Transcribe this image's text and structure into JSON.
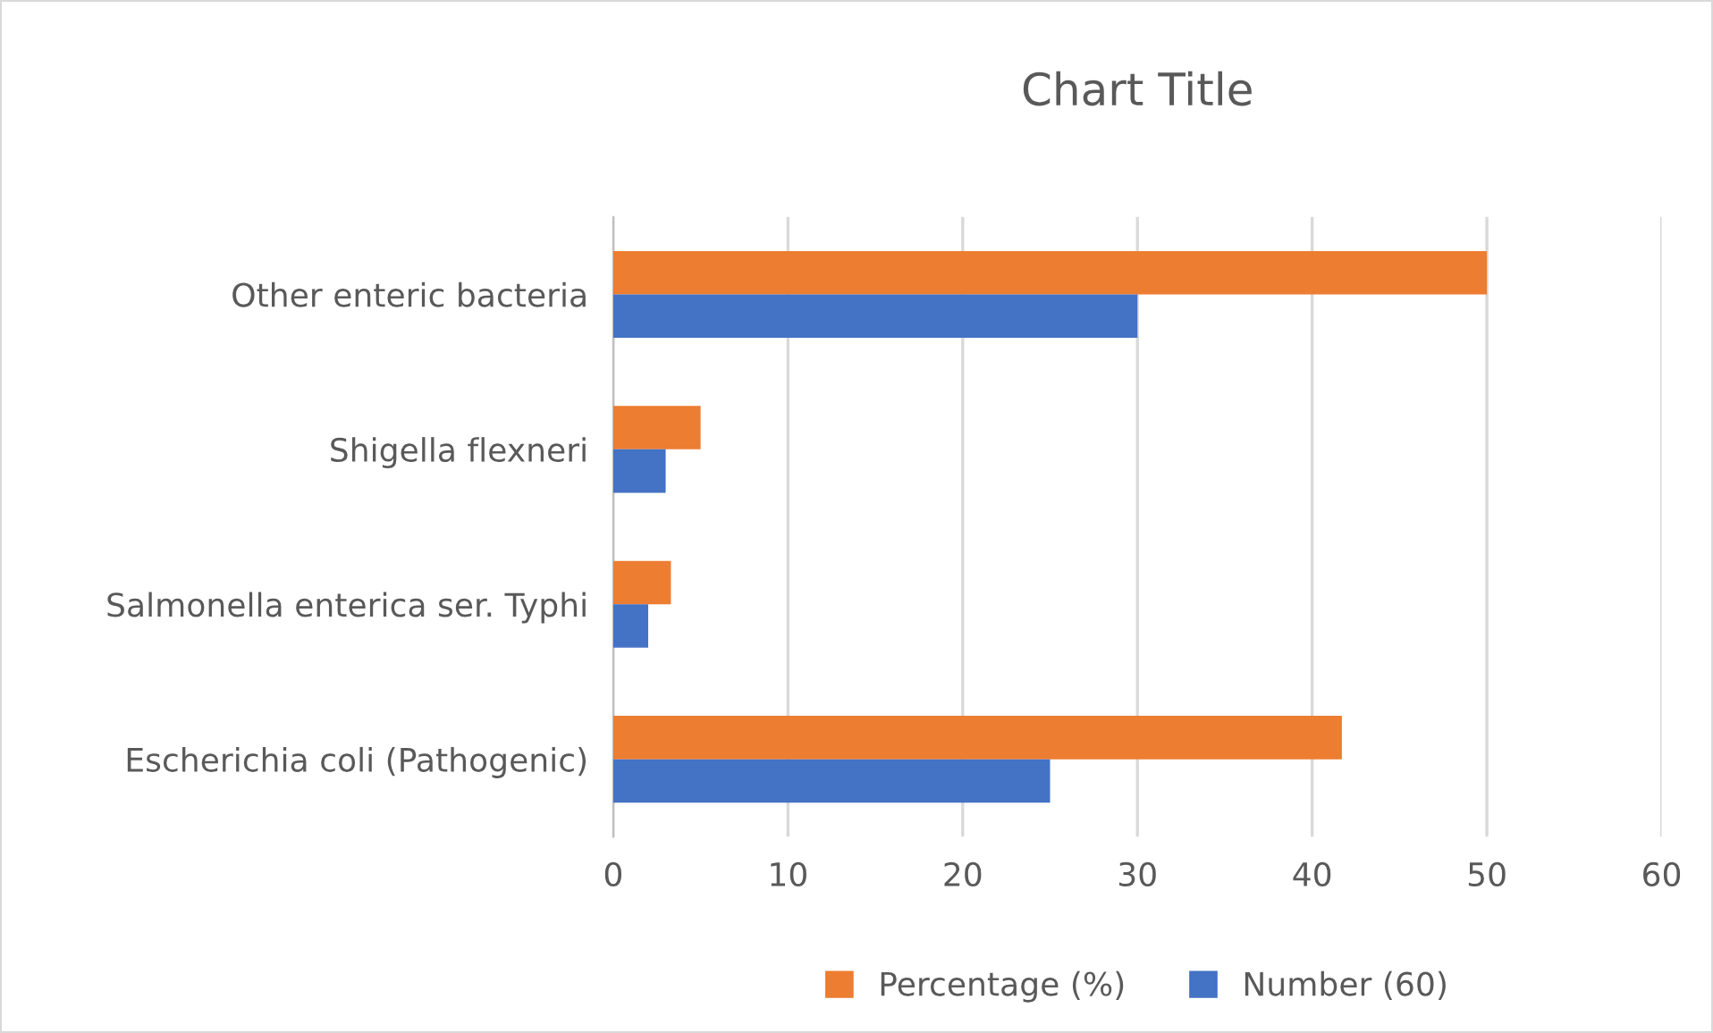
{
  "chart_data": {
    "type": "bar",
    "orientation": "horizontal",
    "title": "Chart Title",
    "categories": [
      "Other enteric bacteria",
      "Shigella flexneri",
      "Salmonella enterica ser. Typhi",
      "Escherichia coli (Pathogenic)"
    ],
    "series": [
      {
        "name": "Percentage (%)",
        "color": "#ed7d31",
        "values": [
          50,
          5,
          3.3,
          41.7
        ]
      },
      {
        "name": "Number (60)",
        "color": "#4472c4",
        "values": [
          30,
          3,
          2,
          25
        ]
      }
    ],
    "xlim": [
      0,
      60
    ],
    "xticks": [
      0,
      10,
      20,
      30,
      40,
      50,
      60
    ],
    "grid": "x",
    "legend": "bottom"
  }
}
